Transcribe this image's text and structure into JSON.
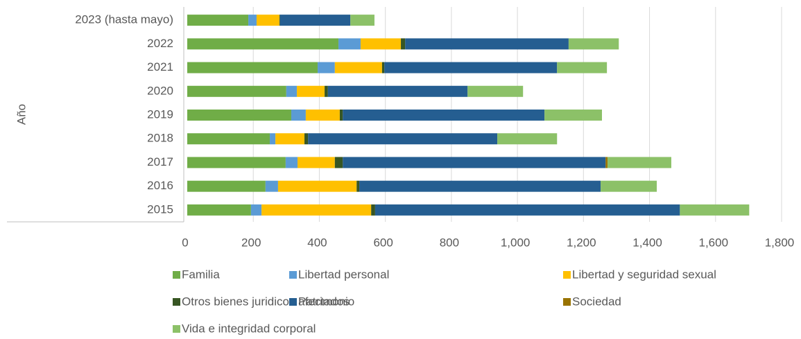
{
  "chart_data": {
    "type": "stacked_barh",
    "y_label": "Año",
    "categories": [
      "2023 (hasta mayo)",
      "2022",
      "2021",
      "2020",
      "2019",
      "2018",
      "2017",
      "2016",
      "2015"
    ],
    "series": [
      {
        "name": "Familia",
        "color": "#70ad47",
        "values": [
          185,
          458,
          395,
          300,
          315,
          250,
          298,
          237,
          193
        ]
      },
      {
        "name": "Libertad personal",
        "color": "#5b9bd5",
        "values": [
          25,
          67,
          52,
          32,
          44,
          17,
          36,
          38,
          32
        ]
      },
      {
        "name": "Libertad y seguridad sexual",
        "color": "#ffc000",
        "values": [
          69,
          122,
          143,
          84,
          103,
          88,
          113,
          238,
          332
        ]
      },
      {
        "name": "Otros bienes juridicos afectados",
        "color": "#375623",
        "values": [
          2,
          13,
          7,
          10,
          9,
          11,
          24,
          8,
          12
        ]
      },
      {
        "name": "Patrimonio",
        "color": "#255e91",
        "values": [
          213,
          495,
          523,
          423,
          611,
          573,
          796,
          731,
          923
        ]
      },
      {
        "name": "Sociedad",
        "color": "#997300",
        "values": [
          0,
          0,
          0,
          0,
          0,
          0,
          6,
          0,
          0
        ]
      },
      {
        "name": "Vida e integridad corporal",
        "color": "#8cc168",
        "values": [
          73,
          152,
          151,
          168,
          174,
          181,
          193,
          170,
          210
        ]
      }
    ],
    "xlim": [
      0,
      1800
    ],
    "xticks": [
      0,
      200,
      400,
      600,
      800,
      {
        "value": 1000,
        "label": "1,000"
      },
      {
        "value": 1200,
        "label": "1,200"
      },
      {
        "value": 1400,
        "label": "1,400"
      },
      {
        "value": 1600,
        "label": "1,600"
      },
      {
        "value": 1800,
        "label": "1,800"
      }
    ],
    "grid": true
  }
}
